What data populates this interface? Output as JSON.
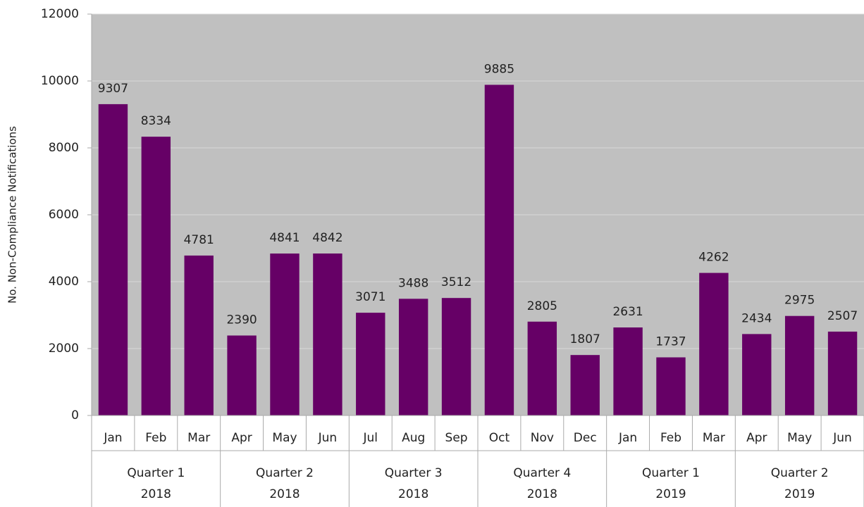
{
  "chart_data": {
    "type": "bar",
    "y_label": "No. Non-Compliance Notifications",
    "categories": [
      "Jan",
      "Feb",
      "Mar",
      "Apr",
      "May",
      "Jun",
      "Jul",
      "Aug",
      "Sep",
      "Oct",
      "Nov",
      "Dec",
      "Jan",
      "Feb",
      "Mar",
      "Apr",
      "May",
      "Jun"
    ],
    "groups": [
      {
        "quarter": "Quarter 1",
        "year": "2018"
      },
      {
        "quarter": "Quarter 2",
        "year": "2018"
      },
      {
        "quarter": "Quarter 3",
        "year": "2018"
      },
      {
        "quarter": "Quarter 4",
        "year": "2018"
      },
      {
        "quarter": "Quarter 1",
        "year": "2019"
      },
      {
        "quarter": "Quarter 2",
        "year": "2019"
      }
    ],
    "values": [
      9307,
      8334,
      4781,
      2390,
      4841,
      4842,
      3071,
      3488,
      3512,
      9885,
      2805,
      1807,
      2631,
      1737,
      4262,
      2434,
      2975,
      2507
    ],
    "color": "#660066",
    "ylim": [
      0,
      12000
    ],
    "yticks": [
      0,
      2000,
      4000,
      6000,
      8000,
      10000,
      12000
    ],
    "grid": true
  }
}
